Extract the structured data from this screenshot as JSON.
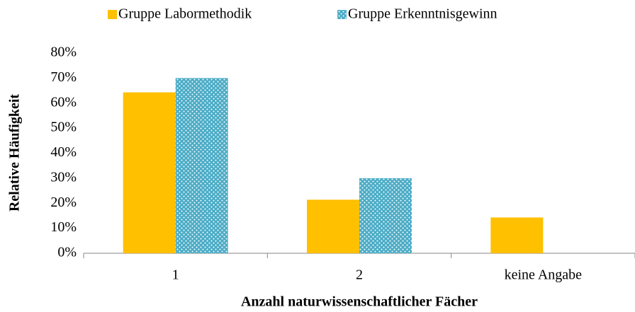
{
  "chart_data": {
    "type": "bar",
    "xlabel": "Anzahl naturwissenschaftlicher Fächer",
    "ylabel": "Relative Häufigkeit",
    "categories": [
      "1",
      "2",
      "keine Angabe"
    ],
    "series": [
      {
        "name": "Gruppe Labormethodik",
        "color": "#ffc000",
        "values": [
          64.3,
          21.4,
          14.3
        ]
      },
      {
        "name": "Gruppe Erkenntnisgewinn",
        "color": "#4bacc6",
        "pattern": "dots",
        "values": [
          70,
          30,
          0
        ]
      }
    ],
    "ylim": [
      0,
      80
    ],
    "yticks": [
      {
        "value": 0,
        "label": "0%"
      },
      {
        "value": 10,
        "label": "10%"
      },
      {
        "value": 20,
        "label": "20%"
      },
      {
        "value": 30,
        "label": "30%"
      },
      {
        "value": 40,
        "label": "40%"
      },
      {
        "value": 50,
        "label": "50%"
      },
      {
        "value": 60,
        "label": "60%"
      },
      {
        "value": 70,
        "label": "70%"
      },
      {
        "value": 80,
        "label": "80%"
      }
    ],
    "grid": false,
    "legend": "top"
  }
}
